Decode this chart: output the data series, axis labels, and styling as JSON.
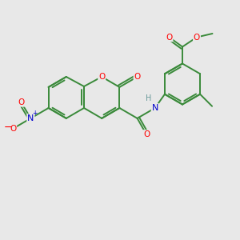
{
  "bg_color": "#e8e8e8",
  "bond_color": "#3a8a3a",
  "atom_colors": {
    "O": "#ff0000",
    "N": "#0000cc",
    "H": "#6a9a9a",
    "C": "#3a8a3a"
  },
  "figsize": [
    3.0,
    3.0
  ],
  "dpi": 100,
  "lw": 1.4,
  "fontsize": 7.5
}
